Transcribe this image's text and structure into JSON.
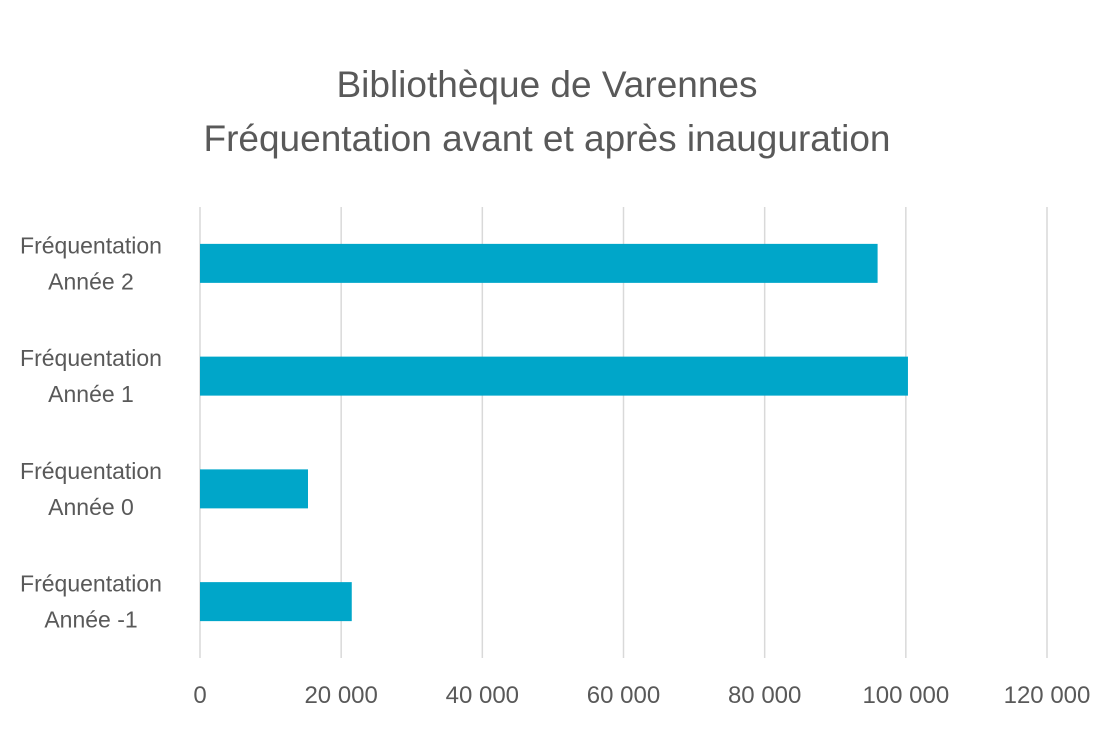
{
  "chart_data": {
    "type": "bar",
    "orientation": "horizontal",
    "title": "Bibliothèque de Varennes",
    "subtitle": "Fréquentation avant et après inauguration",
    "categories": [
      [
        "Fréquentation",
        "Année 2"
      ],
      [
        "Fréquentation",
        "Année 1"
      ],
      [
        "Fréquentation",
        "Année 0"
      ],
      [
        "Fréquentation",
        "Année -1"
      ]
    ],
    "values": [
      96000,
      100300,
      15300,
      21500
    ],
    "xlim": [
      0,
      120000
    ],
    "xticks": [
      0,
      20000,
      40000,
      60000,
      80000,
      100000,
      120000
    ],
    "xtick_labels": [
      "0",
      "20 000",
      "40 000",
      "60 000",
      "80 000",
      "100 000",
      "120 000"
    ],
    "grid": true,
    "legend": "none",
    "bar_color": "#00a6c9"
  }
}
